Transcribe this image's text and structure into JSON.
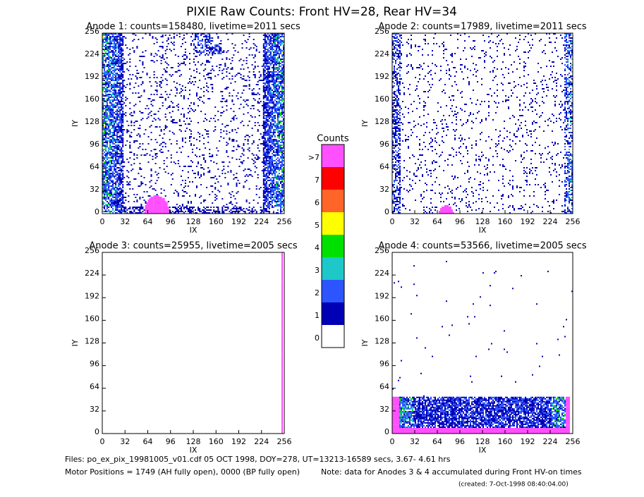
{
  "title": "PIXIE Raw Counts:  Front HV=28, Rear HV=34",
  "chart_data": [
    {
      "type": "heatmap",
      "title": "Anode 1: counts=158480, livetime=2011 secs",
      "xlabel": "IX",
      "ylabel": "IY",
      "xlim": [
        0,
        256
      ],
      "ylim": [
        0,
        256
      ],
      "xticks": [
        0,
        32,
        64,
        96,
        128,
        160,
        192,
        224,
        256
      ],
      "yticks": [
        0,
        32,
        64,
        96,
        128,
        160,
        192,
        224,
        256
      ]
    },
    {
      "type": "heatmap",
      "title": "Anode 2: counts=17989, livetime=2011 secs",
      "xlabel": "IX",
      "ylabel": "IY",
      "xlim": [
        0,
        256
      ],
      "ylim": [
        0,
        256
      ],
      "xticks": [
        0,
        32,
        64,
        96,
        128,
        160,
        192,
        224,
        256
      ],
      "yticks": [
        0,
        32,
        64,
        96,
        128,
        160,
        192,
        224,
        256
      ]
    },
    {
      "type": "heatmap",
      "title": "Anode 3: counts=25955, livetime=2005 secs",
      "xlabel": "IX",
      "ylabel": "IY",
      "xlim": [
        0,
        256
      ],
      "ylim": [
        0,
        256
      ],
      "xticks": [
        0,
        32,
        64,
        96,
        128,
        160,
        192,
        224,
        256
      ],
      "yticks": [
        0,
        32,
        64,
        96,
        128,
        160,
        192,
        224,
        256
      ]
    },
    {
      "type": "heatmap",
      "title": "Anode 4: counts=53566, livetime=2005 secs",
      "xlabel": "IX",
      "ylabel": "IY",
      "xlim": [
        0,
        256
      ],
      "ylim": [
        0,
        256
      ],
      "xticks": [
        0,
        32,
        64,
        96,
        128,
        160,
        192,
        224,
        256
      ],
      "yticks": [
        0,
        32,
        64,
        96,
        128,
        160,
        192,
        224,
        256
      ]
    }
  ],
  "colorbar": {
    "title": "Counts",
    "levels": [
      0,
      1,
      2,
      3,
      4,
      5,
      6,
      7,
      {
        "value": 8,
        "label": ">7"
      }
    ],
    "colors": [
      "#ffffff",
      "#0000b4",
      "#2c55ff",
      "#1ec8c8",
      "#00e000",
      "#ffff00",
      "#ff6428",
      "#ff0000",
      "#ff50ff"
    ]
  },
  "footer": {
    "files": "Files: po_ex_pix_19981005_v01.cdf   05 OCT 1998, DOY=278, UT=13213-16589 secs,  3.67- 4.61 hrs",
    "motor": "Motor Positions = 1749 (AH fully open), 0000 (BP fully open)",
    "note": "Note: data for Anodes 3 & 4 accumulated during Front HV-on times",
    "created": "(created:  7-Oct-1998 08:40:04.00)"
  }
}
